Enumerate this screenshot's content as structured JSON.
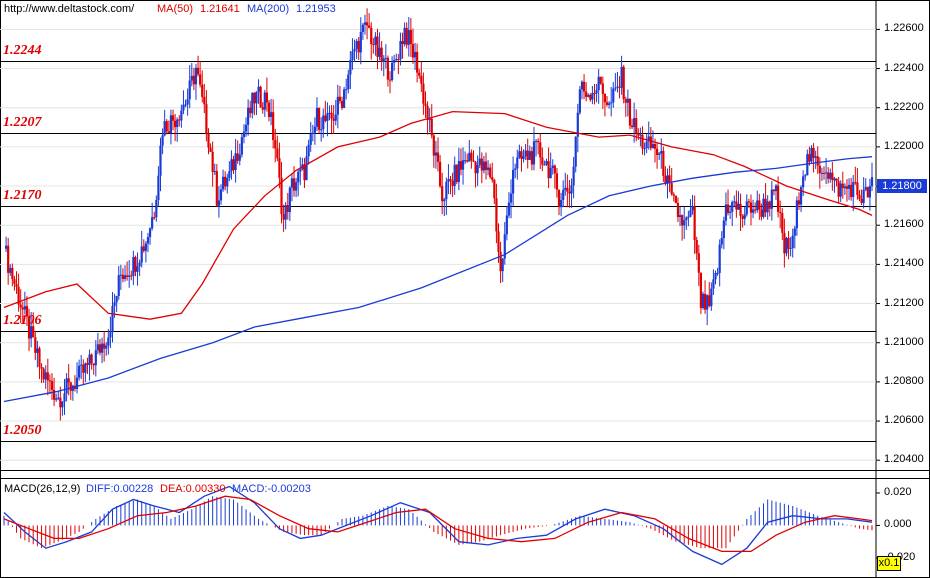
{
  "header": {
    "url": "http://www.deltastock.com/",
    "ma50_label": "MA(50)",
    "ma50_value": "1.21641",
    "ma200_label": "MA(200)",
    "ma200_value": "1.21953"
  },
  "macd_header": {
    "name": "MACD(26,12,9)",
    "diff": "DIFF:0.00228",
    "dea": "DEA:0.00330",
    "macd": "MACD:-0.00203"
  },
  "last_price": "1.21800",
  "zoom_label": "x0.1",
  "colors": {
    "up": "#1a3bd6",
    "down": "#e00000",
    "ma50": "#e00000",
    "ma200": "#1a3bd6",
    "sr_line": "#000000"
  },
  "chart_data": [
    {
      "type": "candlestick",
      "y_ticks": [
        "1.22600",
        "1.22400",
        "1.22200",
        "1.22000",
        "1.21800",
        "1.21600",
        "1.21400",
        "1.21200",
        "1.21000",
        "1.20800",
        "1.20600",
        "1.20400"
      ],
      "ylim": [
        1.2035,
        1.2275
      ],
      "support_resistance": [
        {
          "label": "1.2244",
          "value": 1.2244
        },
        {
          "label": "1.2207",
          "value": 1.2207
        },
        {
          "label": "1.2170",
          "value": 1.217
        },
        {
          "label": "1.2106",
          "value": 1.2106
        },
        {
          "label": "1.2050",
          "value": 1.205
        }
      ],
      "close_path": [
        [
          0,
          1.2148
        ],
        [
          8,
          1.212
        ],
        [
          18,
          1.2085
        ],
        [
          26,
          1.2072
        ],
        [
          34,
          1.208
        ],
        [
          42,
          1.209
        ],
        [
          50,
          1.2105
        ],
        [
          56,
          1.2135
        ],
        [
          62,
          1.214
        ],
        [
          68,
          1.2152
        ],
        [
          72,
          1.2168
        ],
        [
          76,
          1.221
        ],
        [
          82,
          1.2215
        ],
        [
          88,
          1.2225
        ],
        [
          92,
          1.224
        ],
        [
          98,
          1.2205
        ],
        [
          102,
          1.2175
        ],
        [
          108,
          1.2185
        ],
        [
          114,
          1.2205
        ],
        [
          120,
          1.2225
        ],
        [
          126,
          1.2225
        ],
        [
          130,
          1.22
        ],
        [
          134,
          1.2162
        ],
        [
          138,
          1.218
        ],
        [
          144,
          1.2188
        ],
        [
          150,
          1.2215
        ],
        [
          156,
          1.2212
        ],
        [
          162,
          1.2225
        ],
        [
          168,
          1.225
        ],
        [
          174,
          1.2262
        ],
        [
          180,
          1.2245
        ],
        [
          186,
          1.2238
        ],
        [
          192,
          1.226
        ],
        [
          198,
          1.2242
        ],
        [
          204,
          1.221
        ],
        [
          210,
          1.2175
        ],
        [
          216,
          1.2185
        ],
        [
          222,
          1.2195
        ],
        [
          228,
          1.219
        ],
        [
          234,
          1.2185
        ],
        [
          238,
          1.2135
        ],
        [
          244,
          1.219
        ],
        [
          250,
          1.2195
        ],
        [
          256,
          1.2198
        ],
        [
          262,
          1.2188
        ],
        [
          266,
          1.2175
        ],
        [
          272,
          1.218
        ],
        [
          276,
          1.223
        ],
        [
          280,
          1.2228
        ],
        [
          286,
          1.2232
        ],
        [
          290,
          1.222
        ],
        [
          296,
          1.2235
        ],
        [
          300,
          1.2215
        ],
        [
          304,
          1.2205
        ],
        [
          308,
          1.22
        ],
        [
          312,
          1.22
        ],
        [
          316,
          1.219
        ],
        [
          320,
          1.2172
        ],
        [
          326,
          1.216
        ],
        [
          330,
          1.2165
        ],
        [
          334,
          1.212
        ],
        [
          338,
          1.2118
        ],
        [
          342,
          1.2138
        ],
        [
          346,
          1.217
        ],
        [
          350,
          1.217
        ],
        [
          354,
          1.2165
        ],
        [
          358,
          1.217
        ],
        [
          362,
          1.2168
        ],
        [
          366,
          1.2172
        ],
        [
          370,
          1.2175
        ],
        [
          374,
          1.2148
        ],
        [
          378,
          1.215
        ],
        [
          382,
          1.2185
        ],
        [
          386,
          1.2195
        ],
        [
          390,
          1.219
        ],
        [
          394,
          1.219
        ],
        [
          398,
          1.218
        ],
        [
          402,
          1.2178
        ],
        [
          406,
          1.218
        ],
        [
          410,
          1.2175
        ],
        [
          413,
          1.2175
        ],
        [
          416,
          1.218
        ]
      ],
      "series": [
        {
          "name": "MA(50)",
          "points": [
            [
              0,
              1.2118
            ],
            [
              20,
              1.2126
            ],
            [
              35,
              1.213
            ],
            [
              50,
              1.2115
            ],
            [
              70,
              1.2112
            ],
            [
              85,
              1.2115
            ],
            [
              95,
              1.213
            ],
            [
              110,
              1.2158
            ],
            [
              125,
              1.2175
            ],
            [
              140,
              1.2188
            ],
            [
              160,
              1.22
            ],
            [
              180,
              1.2205
            ],
            [
              195,
              1.2212
            ],
            [
              215,
              1.2218
            ],
            [
              240,
              1.2217
            ],
            [
              260,
              1.221
            ],
            [
              285,
              1.2205
            ],
            [
              300,
              1.2206
            ],
            [
              320,
              1.22
            ],
            [
              340,
              1.2196
            ],
            [
              355,
              1.219
            ],
            [
              375,
              1.218
            ],
            [
              395,
              1.2173
            ],
            [
              410,
              1.2168
            ],
            [
              416,
              1.2165
            ]
          ]
        },
        {
          "name": "MA(200)",
          "points": [
            [
              0,
              1.207
            ],
            [
              25,
              1.2075
            ],
            [
              50,
              1.2082
            ],
            [
              75,
              1.2092
            ],
            [
              100,
              1.21
            ],
            [
              120,
              1.2108
            ],
            [
              140,
              1.2112
            ],
            [
              170,
              1.2118
            ],
            [
              200,
              1.2128
            ],
            [
              240,
              1.2145
            ],
            [
              270,
              1.2165
            ],
            [
              290,
              1.2175
            ],
            [
              310,
              1.218
            ],
            [
              330,
              1.2184
            ],
            [
              350,
              1.2187
            ],
            [
              370,
              1.2189
            ],
            [
              390,
              1.2192
            ],
            [
              405,
              1.2194
            ],
            [
              416,
              1.2195
            ]
          ]
        }
      ]
    },
    {
      "type": "macd",
      "y_ticks": [
        "0.020",
        "0.000",
        "-0.020"
      ],
      "ylim": [
        -0.025,
        0.028
      ],
      "histogram_path": [
        [
          0,
          0.006
        ],
        [
          8,
          -0.008
        ],
        [
          18,
          -0.014
        ],
        [
          26,
          -0.01
        ],
        [
          36,
          -0.004
        ],
        [
          44,
          0.004
        ],
        [
          54,
          0.012
        ],
        [
          64,
          0.016
        ],
        [
          72,
          0.012
        ],
        [
          80,
          0.004
        ],
        [
          90,
          0.01
        ],
        [
          100,
          0.018
        ],
        [
          110,
          0.016
        ],
        [
          122,
          0.004
        ],
        [
          134,
          -0.004
        ],
        [
          144,
          -0.006
        ],
        [
          152,
          -0.006
        ],
        [
          162,
          0.004
        ],
        [
          172,
          0.006
        ],
        [
          184,
          0.012
        ],
        [
          194,
          0.01
        ],
        [
          206,
          -0.004
        ],
        [
          218,
          -0.012
        ],
        [
          228,
          -0.01
        ],
        [
          238,
          -0.006
        ],
        [
          250,
          -0.002
        ],
        [
          262,
          0.0
        ],
        [
          276,
          0.006
        ],
        [
          288,
          0.004
        ],
        [
          300,
          0.002
        ],
        [
          310,
          -0.002
        ],
        [
          322,
          -0.01
        ],
        [
          334,
          -0.014
        ],
        [
          346,
          -0.014
        ],
        [
          356,
          0.004
        ],
        [
          366,
          0.016
        ],
        [
          378,
          0.012
        ],
        [
          390,
          0.006
        ],
        [
          400,
          0.002
        ],
        [
          410,
          -0.002
        ],
        [
          416,
          -0.003
        ]
      ],
      "series": [
        {
          "name": "DIFF",
          "points": [
            [
              0,
              0.008
            ],
            [
              10,
              -0.004
            ],
            [
              20,
              -0.014
            ],
            [
              30,
              -0.01
            ],
            [
              42,
              -0.004
            ],
            [
              52,
              0.01
            ],
            [
              62,
              0.016
            ],
            [
              72,
              0.012
            ],
            [
              84,
              0.008
            ],
            [
              96,
              0.018
            ],
            [
              108,
              0.024
            ],
            [
              120,
              0.014
            ],
            [
              132,
              -0.002
            ],
            [
              142,
              -0.008
            ],
            [
              152,
              -0.006
            ],
            [
              164,
              0.0
            ],
            [
              176,
              0.006
            ],
            [
              190,
              0.014
            ],
            [
              204,
              0.008
            ],
            [
              218,
              -0.01
            ],
            [
              232,
              -0.012
            ],
            [
              246,
              -0.008
            ],
            [
              260,
              -0.006
            ],
            [
              274,
              0.004
            ],
            [
              288,
              0.01
            ],
            [
              302,
              0.006
            ],
            [
              316,
              -0.002
            ],
            [
              330,
              -0.016
            ],
            [
              344,
              -0.024
            ],
            [
              356,
              -0.014
            ],
            [
              366,
              0.002
            ],
            [
              378,
              0.006
            ],
            [
              392,
              0.004
            ],
            [
              404,
              0.004
            ],
            [
              416,
              0.002
            ]
          ]
        },
        {
          "name": "DEA",
          "points": [
            [
              0,
              0.004
            ],
            [
              12,
              -0.002
            ],
            [
              24,
              -0.008
            ],
            [
              36,
              -0.008
            ],
            [
              50,
              -0.002
            ],
            [
              64,
              0.006
            ],
            [
              78,
              0.008
            ],
            [
              92,
              0.012
            ],
            [
              106,
              0.018
            ],
            [
              118,
              0.016
            ],
            [
              132,
              0.006
            ],
            [
              146,
              -0.002
            ],
            [
              160,
              -0.004
            ],
            [
              174,
              0.002
            ],
            [
              188,
              0.008
            ],
            [
              202,
              0.01
            ],
            [
              216,
              -0.002
            ],
            [
              232,
              -0.008
            ],
            [
              248,
              -0.01
            ],
            [
              264,
              -0.008
            ],
            [
              280,
              0.002
            ],
            [
              296,
              0.008
            ],
            [
              312,
              0.004
            ],
            [
              328,
              -0.008
            ],
            [
              344,
              -0.016
            ],
            [
              358,
              -0.016
            ],
            [
              370,
              -0.006
            ],
            [
              384,
              0.002
            ],
            [
              398,
              0.006
            ],
            [
              410,
              0.004
            ],
            [
              416,
              0.003
            ]
          ]
        }
      ]
    }
  ]
}
